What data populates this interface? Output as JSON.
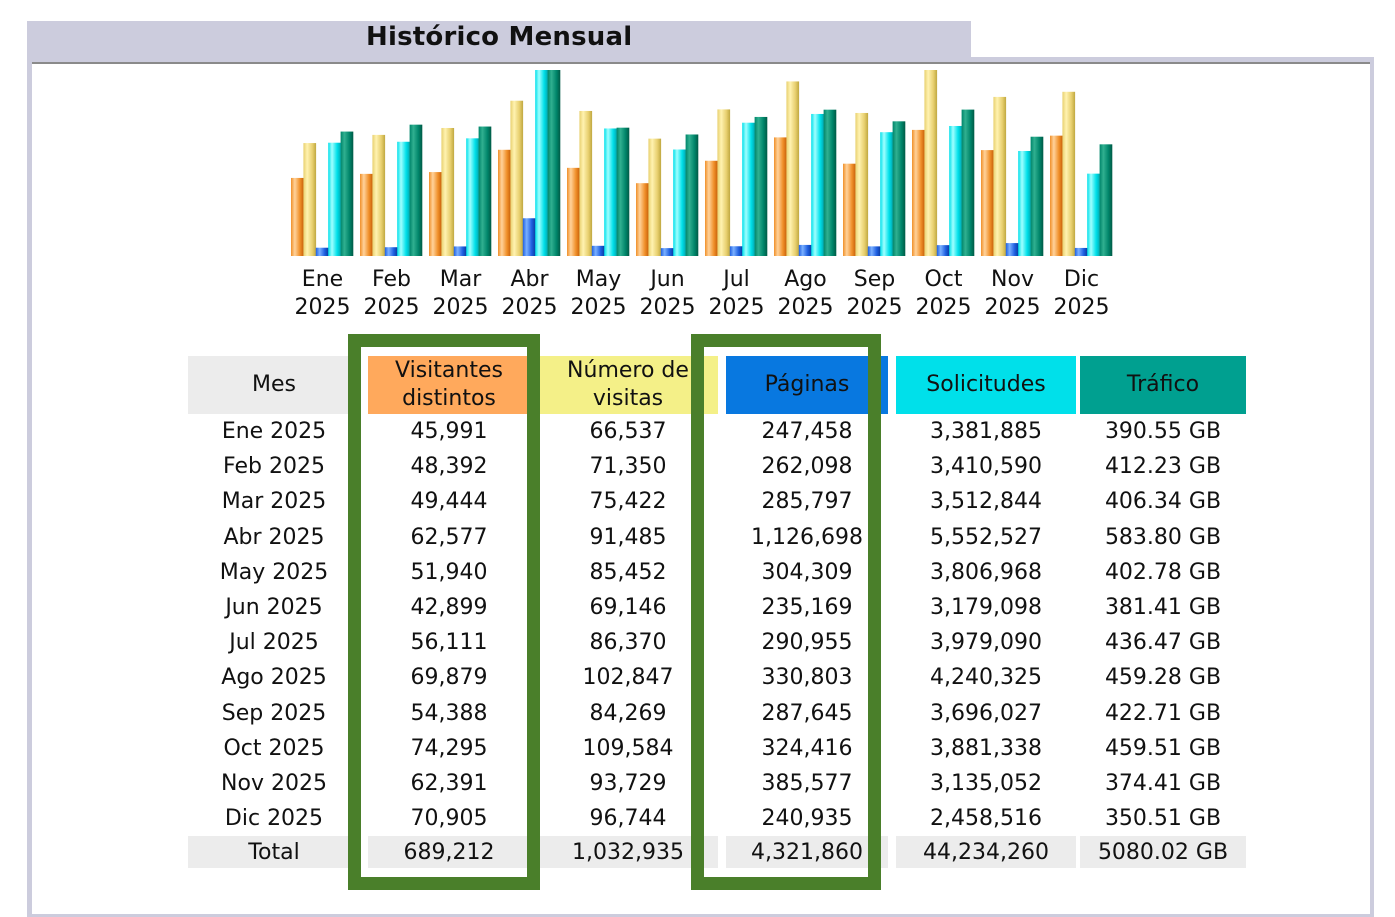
{
  "title": "Histórico Mensual",
  "colors": {
    "visitors": "#f0902a",
    "visits": "#e8d070",
    "pages": "#1e5fe0",
    "requests": "#00e0ea",
    "traffic": "#00856a",
    "highlight": "#4a7f2a"
  },
  "chart_data": {
    "type": "bar",
    "title": "Histórico Mensual",
    "categories": [
      "Ene 2025",
      "Feb 2025",
      "Mar 2025",
      "Abr 2025",
      "May 2025",
      "Jun 2025",
      "Jul 2025",
      "Ago 2025",
      "Sep 2025",
      "Oct 2025",
      "Nov 2025",
      "Dic 2025"
    ],
    "category_labels": [
      [
        "Ene",
        "2025"
      ],
      [
        "Feb",
        "2025"
      ],
      [
        "Mar",
        "2025"
      ],
      [
        "Abr",
        "2025"
      ],
      [
        "May",
        "2025"
      ],
      [
        "Jun",
        "2025"
      ],
      [
        "Jul",
        "2025"
      ],
      [
        "Ago",
        "2025"
      ],
      [
        "Sep",
        "2025"
      ],
      [
        "Oct",
        "2025"
      ],
      [
        "Nov",
        "2025"
      ],
      [
        "Dic",
        "2025"
      ]
    ],
    "series": [
      {
        "name": "Visitantes distintos",
        "key": "visitors",
        "scale_group": "visits",
        "values": [
          45991,
          48392,
          49444,
          62577,
          51940,
          42899,
          56111,
          69879,
          54388,
          74295,
          62391,
          70905
        ]
      },
      {
        "name": "Número de visitas",
        "key": "visits",
        "scale_group": "visits",
        "values": [
          66537,
          71350,
          75422,
          91485,
          85452,
          69146,
          86370,
          102847,
          84269,
          109584,
          93729,
          96744
        ]
      },
      {
        "name": "Páginas",
        "key": "pages",
        "scale_group": "requests",
        "values": [
          247458,
          262098,
          285797,
          1126698,
          304309,
          235169,
          290955,
          330803,
          287645,
          324416,
          385577,
          240935
        ]
      },
      {
        "name": "Solicitudes",
        "key": "requests",
        "scale_group": "requests",
        "values": [
          3381885,
          3410590,
          3512844,
          5552527,
          3806968,
          3179098,
          3979090,
          4240325,
          3696027,
          3881338,
          3135052,
          2458516
        ]
      },
      {
        "name": "Tráfico",
        "key": "traffic",
        "scale_group": "traffic",
        "unit": "GB",
        "values": [
          390.55,
          412.23,
          406.34,
          583.8,
          402.78,
          381.41,
          436.47,
          459.28,
          422.71,
          459.51,
          374.41,
          350.51
        ]
      }
    ],
    "xlabel": "",
    "ylabel": "",
    "grid": false,
    "legend": "none"
  },
  "table": {
    "headers": {
      "mes": "Mes",
      "visitors": [
        "Visitantes",
        "distintos"
      ],
      "visits": [
        "Número de",
        "visitas"
      ],
      "pages": "Páginas",
      "requests": "Solicitudes",
      "traffic": "Tráfico"
    },
    "rows": [
      {
        "mes": "Ene 2025",
        "visitors": "45,991",
        "visits": "66,537",
        "pages": "247,458",
        "requests": "3,381,885",
        "traffic": "390.55 GB"
      },
      {
        "mes": "Feb 2025",
        "visitors": "48,392",
        "visits": "71,350",
        "pages": "262,098",
        "requests": "3,410,590",
        "traffic": "412.23 GB"
      },
      {
        "mes": "Mar 2025",
        "visitors": "49,444",
        "visits": "75,422",
        "pages": "285,797",
        "requests": "3,512,844",
        "traffic": "406.34 GB"
      },
      {
        "mes": "Abr 2025",
        "visitors": "62,577",
        "visits": "91,485",
        "pages": "1,126,698",
        "requests": "5,552,527",
        "traffic": "583.80 GB"
      },
      {
        "mes": "May 2025",
        "visitors": "51,940",
        "visits": "85,452",
        "pages": "304,309",
        "requests": "3,806,968",
        "traffic": "402.78 GB"
      },
      {
        "mes": "Jun 2025",
        "visitors": "42,899",
        "visits": "69,146",
        "pages": "235,169",
        "requests": "3,179,098",
        "traffic": "381.41 GB"
      },
      {
        "mes": "Jul 2025",
        "visitors": "56,111",
        "visits": "86,370",
        "pages": "290,955",
        "requests": "3,979,090",
        "traffic": "436.47 GB"
      },
      {
        "mes": "Ago 2025",
        "visitors": "69,879",
        "visits": "102,847",
        "pages": "330,803",
        "requests": "4,240,325",
        "traffic": "459.28 GB"
      },
      {
        "mes": "Sep 2025",
        "visitors": "54,388",
        "visits": "84,269",
        "pages": "287,645",
        "requests": "3,696,027",
        "traffic": "422.71 GB"
      },
      {
        "mes": "Oct 2025",
        "visitors": "74,295",
        "visits": "109,584",
        "pages": "324,416",
        "requests": "3,881,338",
        "traffic": "459.51 GB"
      },
      {
        "mes": "Nov 2025",
        "visitors": "62,391",
        "visits": "93,729",
        "pages": "385,577",
        "requests": "3,135,052",
        "traffic": "374.41 GB"
      },
      {
        "mes": "Dic 2025",
        "visitors": "70,905",
        "visits": "96,744",
        "pages": "240,935",
        "requests": "2,458,516",
        "traffic": "350.51 GB"
      }
    ],
    "total": {
      "mes": "Total",
      "visitors": "689,212",
      "visits": "1,032,935",
      "pages": "4,321,860",
      "requests": "44,234,260",
      "traffic": "5080.02 GB"
    }
  }
}
